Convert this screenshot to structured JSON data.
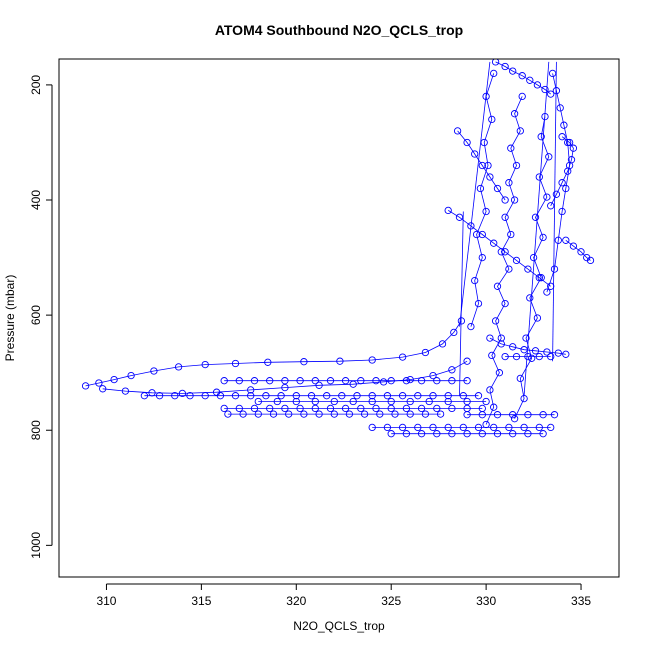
{
  "chart_data": {
    "type": "scatter",
    "title": "ATOM4 Southbound N2O_QCLS_trop",
    "xlabel": "N2O_QCLS_trop",
    "ylabel": "Pressure (mbar)",
    "xlim": [
      307.5,
      337.0
    ],
    "ylim": [
      1055,
      155
    ],
    "y_reversed": true,
    "xticks": [
      310,
      315,
      320,
      325,
      330,
      335
    ],
    "yticks": [
      200,
      400,
      600,
      800,
      1000
    ],
    "marker": "open-circle",
    "connected": true,
    "color": "#0000ff",
    "series": [
      {
        "x": [
          308.9,
          309.6,
          310.4,
          311.3,
          312.5,
          313.8,
          315.2,
          316.8,
          318.5,
          320.4,
          322.3,
          324.0,
          325.6,
          326.8,
          327.7,
          328.3,
          328.7
        ],
        "y": [
          723,
          718,
          712,
          705,
          697,
          690,
          686,
          684,
          682,
          681,
          680,
          678,
          673,
          665,
          650,
          630,
          610
        ]
      },
      {
        "x": [
          309.8,
          311.0,
          312.4,
          314.0,
          315.8,
          317.6,
          319.4,
          321.2,
          323.0,
          324.6,
          326.0,
          327.2,
          328.2,
          329.0
        ],
        "y": [
          728,
          732,
          735,
          736,
          734,
          730,
          726,
          722,
          720,
          716,
          712,
          705,
          695,
          680
        ]
      },
      {
        "x": [
          316.2,
          317.0,
          317.8,
          318.6,
          319.4,
          320.2,
          321.0,
          321.8,
          322.6,
          323.4,
          324.2,
          325.0,
          325.8,
          326.6,
          327.4,
          328.2,
          329.0
        ],
        "y": [
          714,
          714,
          714,
          714,
          714,
          714,
          714,
          714,
          714,
          714,
          714,
          714,
          714,
          714,
          714,
          714,
          714
        ]
      },
      {
        "x": [
          316.2,
          317.0,
          317.8,
          318.6,
          319.4,
          320.2,
          321.0,
          321.8,
          322.6,
          323.4,
          324.2,
          325.0,
          325.8,
          326.6,
          327.4,
          328.2,
          329.0,
          329.8
        ],
        "y": [
          762,
          762,
          762,
          762,
          762,
          762,
          762,
          762,
          762,
          762,
          762,
          762,
          762,
          762,
          762,
          762,
          762,
          762
        ]
      },
      {
        "x": [
          316.4,
          317.2,
          318.0,
          318.8,
          319.6,
          320.4,
          321.2,
          322.0,
          322.8,
          323.6,
          324.4,
          325.2,
          326.0,
          326.8,
          327.6
        ],
        "y": [
          772,
          772,
          772,
          772,
          772,
          772,
          772,
          772,
          772,
          772,
          772,
          772,
          772,
          772,
          772
        ]
      },
      {
        "x": [
          312.0,
          312.8,
          313.6,
          314.4,
          315.2,
          316.0,
          316.8,
          317.6,
          318.4,
          319.2,
          320.0,
          320.8,
          321.6,
          322.4,
          323.2,
          324.0,
          324.8,
          325.6,
          326.4,
          327.2,
          328.0,
          328.8,
          329.6
        ],
        "y": [
          740,
          740,
          740,
          740,
          740,
          740,
          740,
          740,
          740,
          740,
          740,
          740,
          740,
          740,
          740,
          740,
          740,
          740,
          740,
          740,
          740,
          740,
          740
        ]
      },
      {
        "x": [
          318.0,
          319.0,
          320.0,
          321.0,
          322.0,
          323.0,
          324.0,
          325.0,
          326.0,
          327.0,
          328.0,
          329.0,
          330.0
        ],
        "y": [
          750,
          750,
          750,
          750,
          750,
          750,
          750,
          750,
          750,
          750,
          750,
          750,
          750
        ]
      },
      {
        "x": [
          324.0,
          324.8,
          325.6,
          326.4,
          327.2,
          328.0,
          328.8,
          329.6,
          330.4,
          331.2,
          332.0,
          332.8,
          333.4
        ],
        "y": [
          795,
          795,
          795,
          795,
          795,
          795,
          795,
          795,
          795,
          795,
          795,
          795,
          795
        ]
      },
      {
        "x": [
          325.0,
          325.8,
          326.6,
          327.4,
          328.2,
          329.0,
          329.8,
          330.6,
          331.4,
          332.2,
          333.0
        ],
        "y": [
          806,
          806,
          806,
          806,
          806,
          806,
          806,
          806,
          806,
          806,
          806
        ]
      },
      {
        "x": [
          329.0,
          329.8,
          330.6,
          331.4,
          332.2,
          333.0,
          333.6
        ],
        "y": [
          773,
          773,
          773,
          773,
          773,
          773,
          773
        ]
      },
      {
        "x": [
          331.0,
          331.6,
          332.2,
          332.8,
          333.4
        ],
        "y": [
          672,
          672,
          672,
          672,
          672
        ]
      },
      {
        "x": [
          330.0,
          330.4,
          330.2,
          330.7,
          330.3,
          330.8,
          330.5,
          331.0,
          330.6,
          331.2,
          330.8,
          331.3,
          331.0,
          331.5,
          331.2,
          331.6,
          331.3,
          331.8,
          331.5,
          331.9
        ],
        "y": [
          790,
          760,
          730,
          700,
          670,
          640,
          610,
          580,
          550,
          520,
          490,
          460,
          430,
          400,
          370,
          340,
          310,
          280,
          250,
          220
        ]
      },
      {
        "x": [
          331.5,
          332.0,
          331.8,
          332.4,
          332.1,
          332.7,
          332.3,
          332.9,
          332.5,
          333.0,
          332.6,
          333.2,
          332.8,
          333.3,
          332.9,
          333.1
        ],
        "y": [
          780,
          745,
          710,
          675,
          640,
          605,
          570,
          535,
          500,
          465,
          430,
          395,
          360,
          325,
          290,
          255
        ]
      },
      {
        "x": [
          329.2,
          329.6,
          329.4,
          329.8,
          329.5,
          330.0,
          329.7,
          330.1,
          329.9,
          330.3,
          330.0,
          330.4
        ],
        "y": [
          620,
          580,
          540,
          500,
          460,
          420,
          380,
          340,
          300,
          260,
          220,
          180
        ]
      },
      {
        "x": [
          333.2,
          333.6,
          333.8,
          334.0,
          334.2,
          334.4,
          334.3,
          334.1,
          333.9,
          333.7,
          333.5
        ],
        "y": [
          560,
          520,
          470,
          420,
          380,
          340,
          300,
          270,
          240,
          210,
          180
        ]
      },
      {
        "x": [
          334.2,
          334.6,
          335.0,
          335.3,
          335.5
        ],
        "y": [
          470,
          480,
          490,
          500,
          505
        ]
      },
      {
        "x": [
          330.5,
          331.0,
          331.4,
          331.9,
          332.3,
          332.7,
          333.1,
          333.4
        ],
        "y": [
          160,
          168,
          176,
          184,
          192,
          200,
          208,
          216
        ]
      },
      {
        "x": [
          328.5,
          329.0,
          329.4,
          329.8,
          330.2,
          330.6,
          331.0
        ],
        "y": [
          280,
          300,
          320,
          340,
          360,
          380,
          400
        ]
      },
      {
        "x": [
          334.0,
          334.4,
          334.6,
          334.5,
          334.3,
          334.0,
          333.7,
          333.4
        ],
        "y": [
          290,
          300,
          310,
          330,
          350,
          370,
          390,
          410
        ]
      },
      {
        "x": [
          328.0,
          328.6,
          329.2,
          329.8,
          330.4,
          331.0,
          331.6,
          332.2,
          332.8,
          333.4
        ],
        "y": [
          418,
          430,
          445,
          460,
          475,
          490,
          505,
          520,
          535,
          550
        ]
      },
      {
        "x": [
          330.2,
          330.8,
          331.4,
          332.0,
          332.6,
          333.2,
          333.8,
          334.2
        ],
        "y": [
          640,
          650,
          655,
          660,
          662,
          664,
          666,
          668
        ]
      }
    ],
    "trend_lines": [
      {
        "x": [
          328.6,
          330.2
        ],
        "y": [
          620,
          160
        ]
      },
      {
        "x": [
          333.5,
          333.7
        ],
        "y": [
          680,
          160
        ]
      },
      {
        "x": [
          328.6,
          328.8
        ],
        "y": [
          740,
          420
        ]
      },
      {
        "x": [
          332.0,
          333.3
        ],
        "y": [
          740,
          160
        ]
      }
    ]
  }
}
